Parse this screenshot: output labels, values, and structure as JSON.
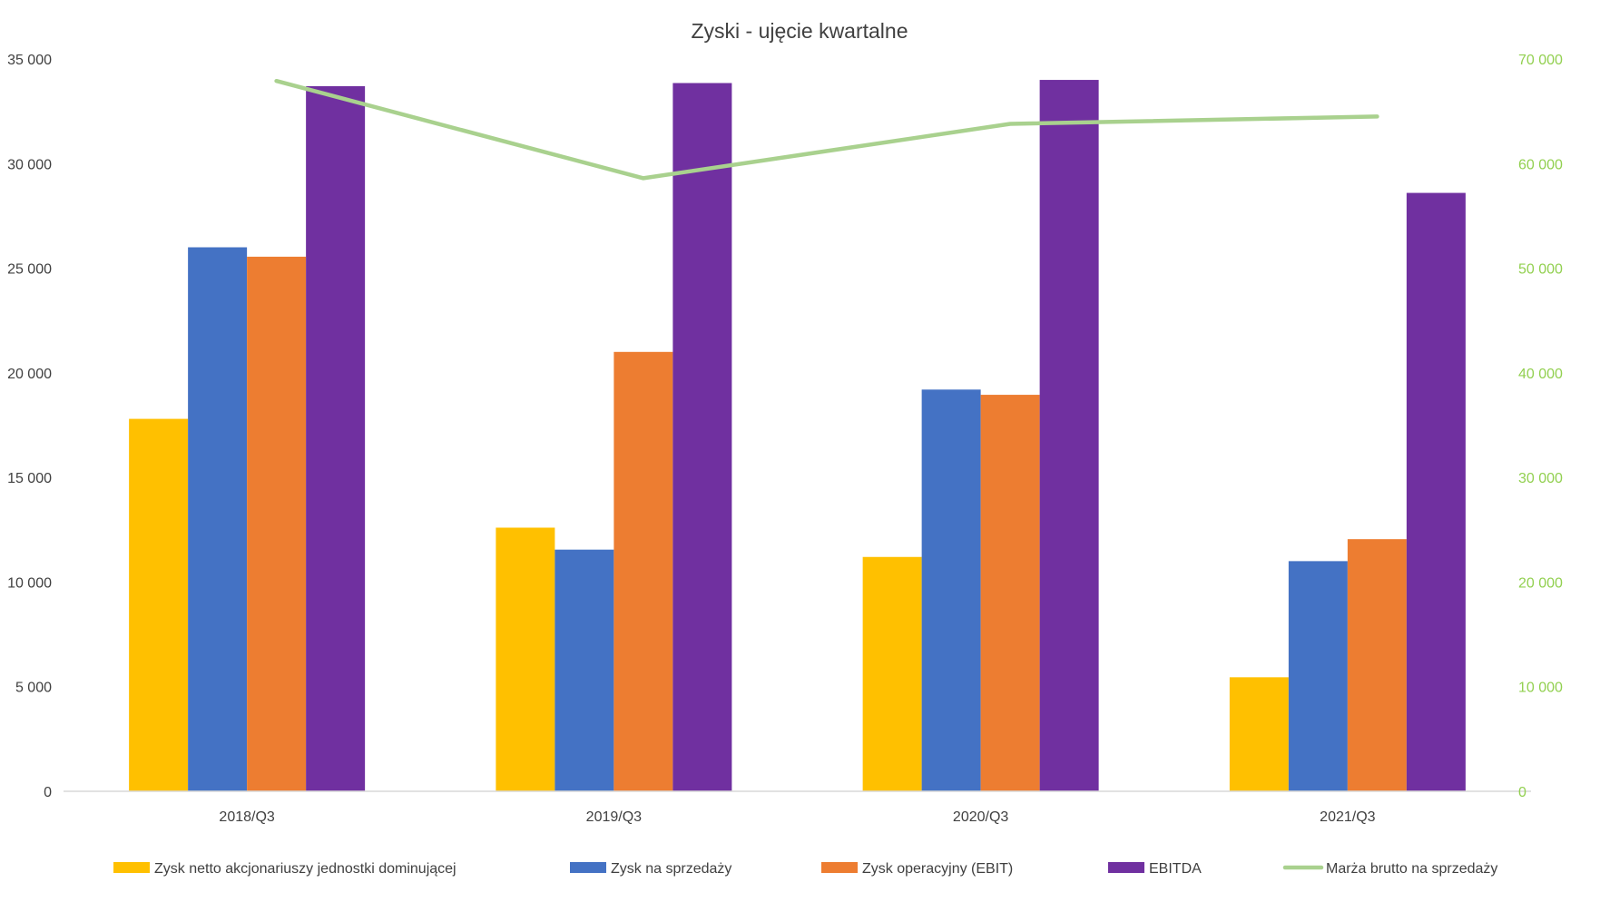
{
  "chart_data": {
    "type": "bar",
    "title": "Zyski - ujęcie kwartalne",
    "categories": [
      "2018/Q3",
      "2019/Q3",
      "2020/Q3",
      "2021/Q3"
    ],
    "series": [
      {
        "name": "Zysk netto akcjonariuszy jednostki dominującej",
        "type": "bar",
        "axis": "left",
        "color": "#ffc000",
        "values": [
          17800,
          12600,
          11200,
          5450
        ]
      },
      {
        "name": "Zysk na sprzedaży",
        "type": "bar",
        "axis": "left",
        "color": "#4472c4",
        "values": [
          26000,
          11550,
          19200,
          11000
        ]
      },
      {
        "name": "Zysk operacyjny (EBIT)",
        "type": "bar",
        "axis": "left",
        "color": "#ed7d31",
        "values": [
          25550,
          21000,
          18950,
          12050
        ]
      },
      {
        "name": "EBITDA",
        "type": "bar",
        "axis": "left",
        "color": "#7030a0",
        "values": [
          33700,
          33850,
          34000,
          28600
        ]
      },
      {
        "name": "Marża brutto na sprzedaży",
        "type": "line",
        "axis": "right",
        "color": "#a9d18e",
        "values": [
          67900,
          58600,
          63800,
          64500
        ]
      }
    ],
    "y_left": {
      "min": 0,
      "max": 35000,
      "ticks": [
        "0",
        "5 000",
        "10 000",
        "15 000",
        "20 000",
        "25 000",
        "30 000",
        "35 000"
      ]
    },
    "y_right": {
      "min": 0,
      "max": 70000,
      "ticks": [
        "0",
        "10 000",
        "20 000",
        "30 000",
        "40 000",
        "50 000",
        "60 000",
        "70 000"
      ],
      "color": "#92d050"
    },
    "grid": false,
    "legend_position": "bottom"
  }
}
